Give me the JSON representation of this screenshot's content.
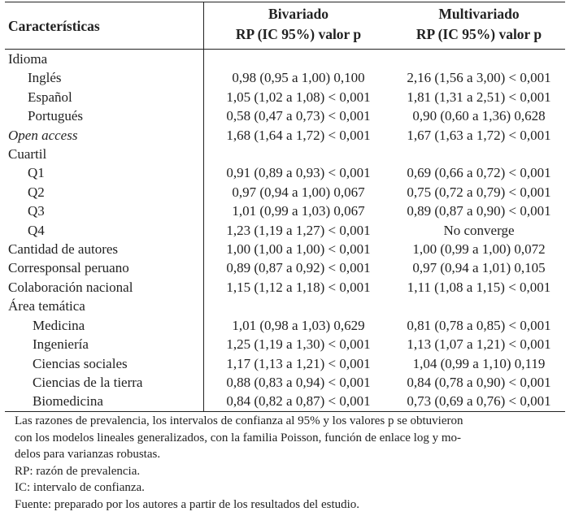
{
  "table": {
    "headers": {
      "characteristics": "Características",
      "bivariate_title": "Bivariado",
      "bivariate_sub": "RP (IC 95%) valor p",
      "multivariate_title": "Multivariado",
      "multivariate_sub": "RP (IC 95%) valor p"
    },
    "rows": [
      {
        "label": "Idioma",
        "level": 0,
        "biv": "",
        "mult": ""
      },
      {
        "label": "Inglés",
        "level": 1,
        "biv": "0,98 (0,95 a 1,00) 0,100",
        "mult": "2,16 (1,56 a 3,00) < 0,001"
      },
      {
        "label": "Español",
        "level": 1,
        "biv": "1,05 (1,02 a 1,08) < 0,001",
        "mult": "1,81 (1,31 a 2,51) < 0,001"
      },
      {
        "label": "Portugués",
        "level": 1,
        "biv": "0,58 (0,47 a 0,73) < 0,001",
        "mult": "0,90 (0,60 a 1,36) 0,628"
      },
      {
        "label": "Open access",
        "level": 0,
        "italic": true,
        "biv": "1,68 (1,64 a 1,72) < 0,001",
        "mult": "1,67 (1,63 a 1,72) < 0,001"
      },
      {
        "label": "Cuartil",
        "level": 0,
        "biv": "",
        "mult": ""
      },
      {
        "label": "Q1",
        "level": 1,
        "biv": "0,91 (0,89 a 0,93) < 0,001",
        "mult": "0,69 (0,66 a 0,72) < 0,001"
      },
      {
        "label": "Q2",
        "level": 1,
        "biv": "0,97 (0,94 a 1,00) 0,067",
        "mult": "0,75 (0,72 a 0,79) < 0,001"
      },
      {
        "label": "Q3",
        "level": 1,
        "biv": "1,01 (0,99 a 1,03) 0,067",
        "mult": "0,89 (0,87 a 0,90) < 0,001"
      },
      {
        "label": "Q4",
        "level": 1,
        "biv": "1,23 (1,19 a 1,27) < 0,001",
        "mult": "No converge"
      },
      {
        "label": "Cantidad de autores",
        "level": 0,
        "biv": "1,00 (1,00 a 1,00) < 0,001",
        "mult": "1,00 (0,99 a 1,00) 0,072"
      },
      {
        "label": "Corresponsal peruano",
        "level": 0,
        "biv": "0,89 (0,87 a 0,92) < 0,001",
        "mult": "0,97 (0,94 a 1,01) 0,105"
      },
      {
        "label": "Colaboración nacional",
        "level": 0,
        "biv": "1,15 (1,12 a 1,18) < 0,001",
        "mult": "1,11 (1,08 a 1,15) < 0,001"
      },
      {
        "label": "Área temática",
        "level": 0,
        "biv": "",
        "mult": ""
      },
      {
        "label": "Medicina",
        "level": 2,
        "biv": "1,01 (0,98 a 1,03) 0,629",
        "mult": "0,81 (0,78 a 0,85) < 0,001"
      },
      {
        "label": "Ingeniería",
        "level": 2,
        "biv": "1,25 (1,19 a 1,30) < 0,001",
        "mult": "1,13 (1,07 a 1,21) < 0,001"
      },
      {
        "label": "Ciencias sociales",
        "level": 2,
        "biv": "1,17 (1,13 a 1,21) < 0,001",
        "mult": "1,04 (0,99 a 1,10) 0,119"
      },
      {
        "label": "Ciencias de la tierra",
        "level": 2,
        "biv": "0,88 (0,83 a 0,94) < 0,001",
        "mult": "0,84 (0,78 a 0,90) < 0,001"
      },
      {
        "label": "Biomedicina",
        "level": 2,
        "biv": "0,84 (0,82 a 0,87) < 0,001",
        "mult": "0,73 (0,69 a 0,76) < 0,001"
      }
    ]
  },
  "notes": {
    "line1": "Las razones de prevalencia, los intervalos de confianza al 95%  y los valores p se obtuvieron",
    "line2": "con los modelos lineales generalizados, con la familia Poisson, función de enlace log y mo-",
    "line3": "delos para varianzas robustas.",
    "rp": "RP: razón de prevalencia.",
    "ic": "IC: intervalo de confianza.",
    "source": "Fuente: preparado por los autores a partir de los resultados del estudio."
  }
}
